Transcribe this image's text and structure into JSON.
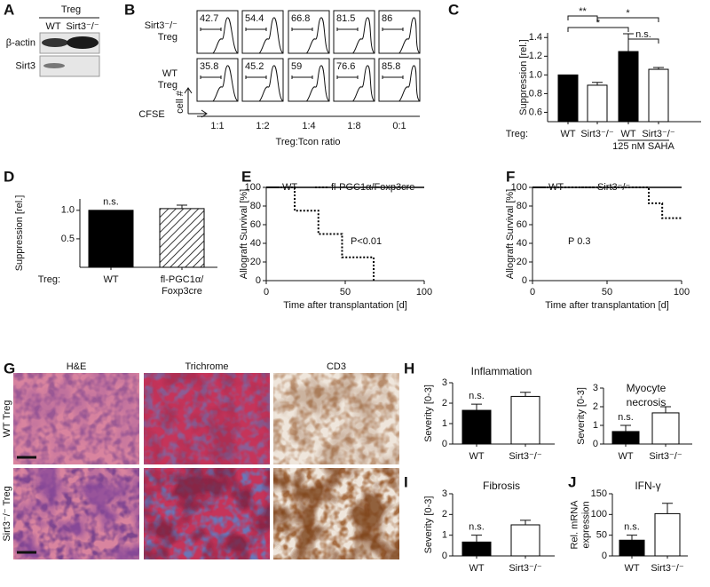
{
  "blot": {
    "panel": "A",
    "title": "Treg",
    "lanes": [
      "WT",
      "Sirt3⁻/⁻"
    ],
    "rows": [
      "β-actin",
      "Sirt3"
    ]
  },
  "flow": {
    "panel": "B",
    "rows": [
      {
        "label": [
          "Sirt3⁻/⁻",
          "Treg"
        ],
        "values": [
          42.7,
          54.4,
          66.8,
          81.5,
          86
        ]
      },
      {
        "label": [
          "WT",
          "Treg"
        ],
        "values": [
          35.8,
          45.2,
          59,
          76.6,
          85.8
        ]
      }
    ],
    "ratios": [
      "1:1",
      "1:2",
      "1:4",
      "1:8",
      "0:1"
    ],
    "xlabel": "Treg:Tcon ratio",
    "y_axis": "cell #",
    "x_axis": "CFSE"
  },
  "chart_data": [
    {
      "type": "bar",
      "panel": "C",
      "ylabel": "Suppression [rel.]",
      "categories": [
        "WT",
        "Sirt3⁻/⁻",
        "WT",
        "Sirt3⁻/⁻"
      ],
      "values": [
        1,
        0.89,
        1.25,
        1.06
      ],
      "errors": [
        null,
        0.03,
        0.19,
        0.02
      ],
      "colors": [
        "#000000",
        "#ffffff",
        "#000000",
        "#ffffff"
      ],
      "hatch": [
        false,
        false,
        false,
        false
      ],
      "ylim": [
        0.5,
        1.45
      ],
      "yticks": [
        0.6,
        0.8,
        {
          "value": 1,
          "label": "1.0"
        },
        1.2,
        1.4
      ],
      "group_label": "Treg:",
      "annotations": [
        "**",
        "*",
        "*",
        "n.s.",
        "125 nM SAHA"
      ]
    },
    {
      "type": "bar",
      "panel": "D",
      "ylabel": "Suppression [rel.]",
      "categories": [
        "WT",
        [
          "fl-PGC1α/",
          "Foxp3cre"
        ]
      ],
      "values": [
        1,
        1.03
      ],
      "errors": [
        null,
        0.06
      ],
      "colors": [
        "#000000",
        "#ffffff"
      ],
      "hatch": [
        false,
        true
      ],
      "ylim": [
        0,
        1.2
      ],
      "yticks": [
        0.5,
        {
          "value": 1,
          "label": "1.0"
        }
      ],
      "group_label": "Treg:",
      "annotations": [
        "n.s."
      ]
    },
    {
      "type": "line",
      "panel": "E",
      "xlabel": "Time after transplantation [d]",
      "ylabel": "Allograft Survival [%]",
      "series": [
        {
          "name": "WT",
          "color": "#000000",
          "dashed": false,
          "x": [
            0,
            100
          ],
          "values": [
            100,
            100
          ]
        },
        {
          "name": "fl-PGC1α/Foxp3cre",
          "color": "#000000",
          "dashed": true,
          "x": [
            0,
            18,
            18,
            33,
            33,
            48,
            48,
            68,
            68
          ],
          "values": [
            100,
            100,
            75,
            75,
            50,
            50,
            25,
            25,
            0
          ]
        }
      ],
      "xlim": [
        0,
        100
      ],
      "ylim": [
        0,
        100
      ],
      "xticks": [
        0,
        50,
        100
      ],
      "yticks": [
        0,
        20,
        40,
        60,
        80,
        100
      ],
      "annotations": [
        "P<0.01"
      ]
    },
    {
      "type": "line",
      "panel": "F",
      "xlabel": "Time after transplantation [d]",
      "ylabel": "Allograft Survival [%]",
      "series": [
        {
          "name": "WT",
          "color": "#000000",
          "dashed": false,
          "x": [
            0,
            100
          ],
          "values": [
            100,
            100
          ]
        },
        {
          "name": "Sirt3⁻/⁻",
          "color": "#000000",
          "dashed": true,
          "x": [
            0,
            78,
            78,
            87,
            87,
            100
          ],
          "values": [
            100,
            100,
            83,
            83,
            67,
            67
          ]
        }
      ],
      "xlim": [
        0,
        100
      ],
      "ylim": [
        0,
        100
      ],
      "xticks": [
        0,
        50,
        100
      ],
      "yticks": [
        0,
        20,
        40,
        60,
        80,
        100
      ],
      "annotations": [
        "P 0.3"
      ]
    },
    {
      "type": "bar",
      "panel": "H",
      "title": [
        "Inflammation"
      ],
      "ylabel": [
        "Severity [0-3]"
      ],
      "categories": [
        "WT",
        "Sirt3⁻/⁻"
      ],
      "values": [
        1.65,
        2.33
      ],
      "errors": [
        0.3,
        0.2
      ],
      "colors": [
        "#000000",
        "#ffffff"
      ],
      "hatch": [
        false,
        false
      ],
      "ylim": [
        0,
        3
      ],
      "yticks": [
        0,
        1,
        2,
        3
      ],
      "annotations": [
        "n.s."
      ]
    },
    {
      "type": "bar",
      "title": [
        "Myocyte",
        "necrosis"
      ],
      "ylabel": [
        "Severity [0-3]"
      ],
      "categories": [
        "WT",
        "Sirt3⁻/⁻"
      ],
      "values": [
        0.67,
        1.67
      ],
      "errors": [
        0.33,
        0.33
      ],
      "colors": [
        "#000000",
        "#ffffff"
      ],
      "hatch": [
        false,
        false
      ],
      "ylim": [
        0,
        3
      ],
      "yticks": [
        0,
        1,
        2,
        3
      ],
      "annotations": [
        "n.s."
      ]
    },
    {
      "type": "bar",
      "panel": "I",
      "title": [
        "Fibrosis"
      ],
      "ylabel": [
        "Severity [0-3]"
      ],
      "categories": [
        "WT",
        "Sirt3⁻/⁻"
      ],
      "values": [
        0.67,
        1.5
      ],
      "errors": [
        0.33,
        0.22
      ],
      "colors": [
        "#000000",
        "#ffffff"
      ],
      "hatch": [
        false,
        false
      ],
      "ylim": [
        0,
        3
      ],
      "yticks": [
        0,
        1,
        2,
        3
      ],
      "annotations": [
        "n.s."
      ]
    },
    {
      "type": "bar",
      "panel": "J",
      "title": [
        "IFN-γ"
      ],
      "ylabel": [
        "Rel. mRNA",
        "expression"
      ],
      "categories": [
        "WT",
        "Sirt3⁻/⁻"
      ],
      "values": [
        38,
        102
      ],
      "errors": [
        12,
        25
      ],
      "colors": [
        "#000000",
        "#ffffff"
      ],
      "hatch": [
        false,
        false
      ],
      "ylim": [
        0,
        150
      ],
      "yticks": [
        0,
        50,
        100,
        150
      ],
      "annotations": [
        "n.s."
      ]
    }
  ],
  "histology": {
    "panel": "G",
    "columns": [
      "H&E",
      "Trichrome",
      "CD3"
    ],
    "rows": [
      "WT Treg",
      "Sirt3⁻/⁻ Treg"
    ]
  }
}
